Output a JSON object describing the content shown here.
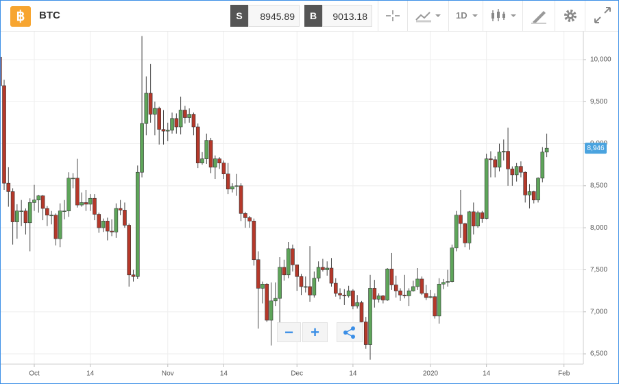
{
  "header": {
    "symbol": "BTC",
    "sell_label": "S",
    "sell_price": "8945.89",
    "buy_label": "B",
    "buy_price": "9013.18",
    "interval": "1D"
  },
  "chart_data": {
    "type": "candlestick",
    "up_color": "#5ea55a",
    "down_color": "#b5382a",
    "grid": true,
    "xlim": [
      0.2,
      135.5
    ],
    "ylim": [
      6378,
      10334
    ],
    "yticks": [
      {
        "value": 6500,
        "label": "6,500"
      },
      {
        "value": 7000,
        "label": "7,000"
      },
      {
        "value": 7500,
        "label": "7,500"
      },
      {
        "value": 8000,
        "label": "8,000"
      },
      {
        "value": 8500,
        "label": "8,500"
      },
      {
        "value": 9000,
        "label": "9,000"
      },
      {
        "value": 9500,
        "label": "9,500"
      },
      {
        "value": 10000,
        "label": "10,000"
      }
    ],
    "xticks": [
      {
        "value": 8,
        "label": "Oct"
      },
      {
        "value": 21,
        "label": "14"
      },
      {
        "value": 39,
        "label": "Nov"
      },
      {
        "value": 52,
        "label": "14"
      },
      {
        "value": 69,
        "label": "Dec"
      },
      {
        "value": 82,
        "label": "14"
      },
      {
        "value": 100,
        "label": "2020"
      },
      {
        "value": 113,
        "label": "14"
      },
      {
        "value": 131,
        "label": "Feb"
      }
    ],
    "last_price": {
      "value": 8946,
      "label": "8,946"
    },
    "ohlc": [
      [
        10030,
        10080,
        9620,
        9690
      ],
      [
        9690,
        9760,
        8450,
        8530
      ],
      [
        8530,
        8720,
        8250,
        8430
      ],
      [
        8430,
        8470,
        7800,
        8070
      ],
      [
        8070,
        8280,
        7870,
        8200
      ],
      [
        8200,
        8330,
        8020,
        8200
      ],
      [
        8200,
        8230,
        7920,
        8060
      ],
      [
        8060,
        8350,
        7720,
        8300
      ],
      [
        8300,
        8510,
        8200,
        8330
      ],
      [
        8330,
        8390,
        8180,
        8380
      ],
      [
        8380,
        8390,
        8090,
        8230
      ],
      [
        8230,
        8260,
        8020,
        8150
      ],
      [
        8150,
        8200,
        8040,
        8150
      ],
      [
        8150,
        8170,
        7790,
        7870
      ],
      [
        7870,
        8290,
        7770,
        8200
      ],
      [
        8200,
        8330,
        8100,
        8200
      ],
      [
        8200,
        8660,
        8130,
        8590
      ],
      [
        8590,
        8650,
        8470,
        8590
      ],
      [
        8590,
        8820,
        8240,
        8270
      ],
      [
        8270,
        8420,
        8250,
        8300
      ],
      [
        8300,
        8450,
        8200,
        8280
      ],
      [
        8280,
        8400,
        8200,
        8350
      ],
      [
        8350,
        8400,
        8090,
        8160
      ],
      [
        8160,
        8180,
        7940,
        8000
      ],
      [
        8000,
        8110,
        7950,
        8080
      ],
      [
        8080,
        8120,
        7850,
        7960
      ],
      [
        7960,
        8100,
        7900,
        7950
      ],
      [
        7950,
        8290,
        7880,
        8230
      ],
      [
        8230,
        8330,
        8150,
        8210
      ],
      [
        8210,
        8300,
        8000,
        8030
      ],
      [
        8030,
        8050,
        7300,
        7440
      ],
      [
        7440,
        7500,
        7360,
        7420
      ],
      [
        7420,
        8740,
        7390,
        8660
      ],
      [
        8660,
        10280,
        8600,
        9240
      ],
      [
        9240,
        9800,
        9100,
        9600
      ],
      [
        9600,
        9950,
        9250,
        9350
      ],
      [
        9350,
        9500,
        9100,
        9420
      ],
      [
        9420,
        9440,
        8990,
        9170
      ],
      [
        9170,
        9400,
        8990,
        9150
      ],
      [
        9150,
        9250,
        9030,
        9160
      ],
      [
        9160,
        9370,
        9120,
        9300
      ],
      [
        9300,
        9360,
        9120,
        9200
      ],
      [
        9200,
        9560,
        9110,
        9400
      ],
      [
        9400,
        9450,
        9240,
        9310
      ],
      [
        9310,
        9420,
        9250,
        9350
      ],
      [
        9350,
        9370,
        9100,
        9200
      ],
      [
        9200,
        9240,
        8710,
        8770
      ],
      [
        8770,
        8900,
        8750,
        8820
      ],
      [
        8820,
        9120,
        8760,
        9040
      ],
      [
        9040,
        9070,
        8650,
        8720
      ],
      [
        8720,
        8860,
        8580,
        8820
      ],
      [
        8820,
        8840,
        8700,
        8770
      ],
      [
        8770,
        8800,
        8580,
        8640
      ],
      [
        8640,
        8770,
        8400,
        8460
      ],
      [
        8460,
        8530,
        8420,
        8490
      ],
      [
        8490,
        8640,
        8380,
        8500
      ],
      [
        8500,
        8530,
        8080,
        8170
      ],
      [
        8170,
        8190,
        8000,
        8120
      ],
      [
        8120,
        8140,
        8000,
        8080
      ],
      [
        8080,
        8110,
        7550,
        7620
      ],
      [
        7620,
        7720,
        6800,
        7280
      ],
      [
        7280,
        7360,
        7100,
        7330
      ],
      [
        7330,
        7340,
        6880,
        6900
      ],
      [
        6900,
        7350,
        6600,
        7130
      ],
      [
        7130,
        7350,
        7070,
        7160
      ],
      [
        7160,
        7650,
        6820,
        7530
      ],
      [
        7530,
        7620,
        7370,
        7440
      ],
      [
        7440,
        7830,
        7400,
        7750
      ],
      [
        7750,
        7800,
        7480,
        7560
      ],
      [
        7560,
        7560,
        7250,
        7420
      ],
      [
        7420,
        7450,
        7200,
        7300
      ],
      [
        7300,
        7420,
        7230,
        7300
      ],
      [
        7300,
        7780,
        7120,
        7200
      ],
      [
        7200,
        7480,
        7170,
        7400
      ],
      [
        7400,
        7600,
        7360,
        7530
      ],
      [
        7530,
        7630,
        7480,
        7500
      ],
      [
        7500,
        7600,
        7430,
        7520
      ],
      [
        7520,
        7640,
        7300,
        7340
      ],
      [
        7340,
        7400,
        7180,
        7220
      ],
      [
        7220,
        7280,
        7150,
        7200
      ],
      [
        7200,
        7270,
        7080,
        7190
      ],
      [
        7190,
        7310,
        7170,
        7250
      ],
      [
        7250,
        7270,
        7030,
        7070
      ],
      [
        7070,
        7200,
        7040,
        7110
      ],
      [
        7110,
        7130,
        6850,
        6880
      ],
      [
        6880,
        6940,
        6560,
        6610
      ],
      [
        6610,
        7440,
        6430,
        7280
      ],
      [
        7280,
        7380,
        7050,
        7150
      ],
      [
        7150,
        7220,
        7110,
        7190
      ],
      [
        7190,
        7200,
        7100,
        7140
      ],
      [
        7140,
        7520,
        7130,
        7510
      ],
      [
        7510,
        7700,
        7260,
        7320
      ],
      [
        7320,
        7430,
        7170,
        7250
      ],
      [
        7250,
        7280,
        7130,
        7200
      ],
      [
        7200,
        7440,
        7160,
        7190
      ],
      [
        7190,
        7280,
        7070,
        7250
      ],
      [
        7250,
        7370,
        7240,
        7300
      ],
      [
        7300,
        7520,
        7260,
        7390
      ],
      [
        7390,
        7420,
        7200,
        7220
      ],
      [
        7220,
        7320,
        7140,
        7170
      ],
      [
        7170,
        7260,
        7160,
        7180
      ],
      [
        7180,
        7220,
        6920,
        6950
      ],
      [
        6950,
        7400,
        6860,
        7330
      ],
      [
        7330,
        7390,
        7270,
        7350
      ],
      [
        7350,
        7500,
        7300,
        7360
      ],
      [
        7360,
        7800,
        7350,
        7760
      ],
      [
        7760,
        8200,
        7720,
        8150
      ],
      [
        8150,
        8450,
        7880,
        8050
      ],
      [
        8050,
        8060,
        7770,
        7820
      ],
      [
        7820,
        8200,
        7740,
        8190
      ],
      [
        8190,
        8300,
        7920,
        8020
      ],
      [
        8020,
        8200,
        8000,
        8180
      ],
      [
        8180,
        8200,
        8060,
        8110
      ],
      [
        8110,
        8880,
        8100,
        8820
      ],
      [
        8820,
        8910,
        8600,
        8810
      ],
      [
        8810,
        8850,
        8600,
        8720
      ],
      [
        8720,
        9000,
        8670,
        8900
      ],
      [
        8900,
        9050,
        8800,
        8910
      ],
      [
        8910,
        9190,
        8500,
        8700
      ],
      [
        8700,
        8730,
        8500,
        8630
      ],
      [
        8630,
        8770,
        8550,
        8730
      ],
      [
        8730,
        8790,
        8600,
        8660
      ],
      [
        8660,
        8670,
        8300,
        8390
      ],
      [
        8390,
        8520,
        8230,
        8430
      ],
      [
        8430,
        8440,
        8290,
        8330
      ],
      [
        8330,
        8600,
        8300,
        8590
      ],
      [
        8590,
        8960,
        8540,
        8900
      ],
      [
        8900,
        9120,
        8840,
        8946
      ]
    ]
  }
}
